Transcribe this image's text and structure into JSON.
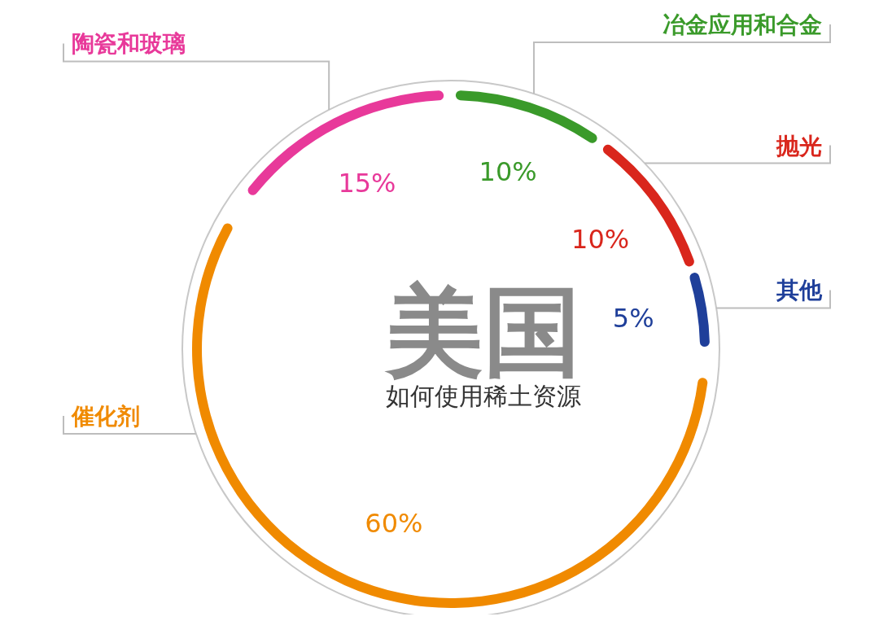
{
  "chart_data": {
    "type": "donut",
    "title": "美国",
    "subtitle": "如何使用稀土资源",
    "categories": [
      "冶金应用和合金",
      "抛光",
      "其他",
      "催化剂",
      "陶瓷和玻璃"
    ],
    "values": [
      10,
      10,
      5,
      60,
      15
    ],
    "colors": [
      "#3a9a2a",
      "#d9261c",
      "#1f3f9a",
      "#f08a00",
      "#e8399a"
    ],
    "value_labels": [
      "10%",
      "10%",
      "5%",
      "60%",
      "15%"
    ]
  }
}
